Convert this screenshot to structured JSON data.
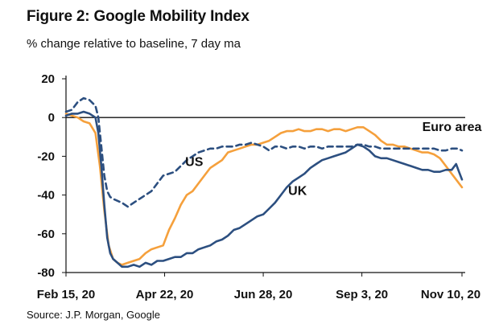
{
  "title": "Figure 2: Google Mobility Index",
  "subtitle": "% change relative to baseline, 7 day ma",
  "source": "Source: J.P. Morgan, Google",
  "chart_data": {
    "type": "line",
    "xlabel": "",
    "ylabel": "",
    "x_tick_labels": [
      "Feb 15, 20",
      "Apr 22, 20",
      "Jun 28, 20",
      "Sep 3, 20",
      "Nov 10, 20"
    ],
    "x_tick_days": [
      0,
      67,
      134,
      201,
      269
    ],
    "y_tick_labels": [
      "20",
      "0",
      "-20",
      "-40",
      "-60",
      "-80"
    ],
    "ylim": [
      -80,
      20
    ],
    "xlim_days": [
      0,
      269
    ],
    "grid": false,
    "series": [
      {
        "name": "Euro area",
        "color": "#f5a03c",
        "style": "solid",
        "points": [
          [
            0,
            2
          ],
          [
            4,
            1
          ],
          [
            8,
            0
          ],
          [
            12,
            -2
          ],
          [
            16,
            -3
          ],
          [
            20,
            -8
          ],
          [
            23,
            -25
          ],
          [
            26,
            -48
          ],
          [
            29,
            -66
          ],
          [
            32,
            -73
          ],
          [
            35,
            -75
          ],
          [
            38,
            -76
          ],
          [
            42,
            -75
          ],
          [
            46,
            -74
          ],
          [
            50,
            -73
          ],
          [
            54,
            -70
          ],
          [
            58,
            -68
          ],
          [
            62,
            -67
          ],
          [
            66,
            -66
          ],
          [
            70,
            -58
          ],
          [
            74,
            -52
          ],
          [
            78,
            -45
          ],
          [
            82,
            -40
          ],
          [
            86,
            -38
          ],
          [
            90,
            -34
          ],
          [
            94,
            -30
          ],
          [
            98,
            -26
          ],
          [
            102,
            -24
          ],
          [
            106,
            -22
          ],
          [
            110,
            -18
          ],
          [
            114,
            -17
          ],
          [
            118,
            -16
          ],
          [
            122,
            -15
          ],
          [
            126,
            -14
          ],
          [
            130,
            -14
          ],
          [
            134,
            -13
          ],
          [
            138,
            -12
          ],
          [
            142,
            -10
          ],
          [
            146,
            -8
          ],
          [
            150,
            -7
          ],
          [
            154,
            -7
          ],
          [
            158,
            -6
          ],
          [
            162,
            -7
          ],
          [
            166,
            -7
          ],
          [
            170,
            -6
          ],
          [
            174,
            -6
          ],
          [
            178,
            -7
          ],
          [
            182,
            -6
          ],
          [
            186,
            -6
          ],
          [
            190,
            -7
          ],
          [
            194,
            -6
          ],
          [
            198,
            -5
          ],
          [
            202,
            -5
          ],
          [
            206,
            -7
          ],
          [
            210,
            -9
          ],
          [
            214,
            -12
          ],
          [
            218,
            -14
          ],
          [
            222,
            -14
          ],
          [
            226,
            -15
          ],
          [
            230,
            -15
          ],
          [
            234,
            -16
          ],
          [
            238,
            -17
          ],
          [
            242,
            -18
          ],
          [
            246,
            -18
          ],
          [
            250,
            -19
          ],
          [
            254,
            -21
          ],
          [
            258,
            -25
          ],
          [
            262,
            -29
          ],
          [
            266,
            -33
          ],
          [
            269,
            -36
          ]
        ]
      },
      {
        "name": "US",
        "color": "#2c4f80",
        "style": "dashed",
        "points": [
          [
            0,
            3
          ],
          [
            4,
            4
          ],
          [
            8,
            8
          ],
          [
            12,
            10
          ],
          [
            16,
            9
          ],
          [
            20,
            6
          ],
          [
            22,
            0
          ],
          [
            24,
            -15
          ],
          [
            26,
            -30
          ],
          [
            28,
            -38
          ],
          [
            30,
            -41
          ],
          [
            32,
            -42
          ],
          [
            35,
            -43
          ],
          [
            38,
            -44
          ],
          [
            42,
            -46
          ],
          [
            46,
            -44
          ],
          [
            50,
            -42
          ],
          [
            54,
            -40
          ],
          [
            58,
            -38
          ],
          [
            62,
            -34
          ],
          [
            66,
            -30
          ],
          [
            70,
            -29
          ],
          [
            74,
            -28
          ],
          [
            78,
            -25
          ],
          [
            82,
            -22
          ],
          [
            86,
            -20
          ],
          [
            90,
            -18
          ],
          [
            94,
            -17
          ],
          [
            98,
            -16
          ],
          [
            102,
            -16
          ],
          [
            106,
            -15
          ],
          [
            110,
            -15
          ],
          [
            114,
            -15
          ],
          [
            118,
            -14
          ],
          [
            122,
            -14
          ],
          [
            126,
            -13
          ],
          [
            130,
            -14
          ],
          [
            134,
            -15
          ],
          [
            138,
            -17
          ],
          [
            142,
            -15
          ],
          [
            146,
            -15
          ],
          [
            150,
            -16
          ],
          [
            154,
            -15
          ],
          [
            158,
            -15
          ],
          [
            162,
            -16
          ],
          [
            166,
            -15
          ],
          [
            170,
            -15
          ],
          [
            174,
            -16
          ],
          [
            178,
            -15
          ],
          [
            182,
            -15
          ],
          [
            186,
            -15
          ],
          [
            190,
            -15
          ],
          [
            194,
            -15
          ],
          [
            198,
            -14
          ],
          [
            202,
            -14
          ],
          [
            206,
            -15
          ],
          [
            210,
            -15
          ],
          [
            214,
            -16
          ],
          [
            218,
            -16
          ],
          [
            222,
            -16
          ],
          [
            226,
            -16
          ],
          [
            230,
            -16
          ],
          [
            234,
            -16
          ],
          [
            238,
            -16
          ],
          [
            242,
            -16
          ],
          [
            246,
            -16
          ],
          [
            250,
            -16
          ],
          [
            254,
            -17
          ],
          [
            258,
            -17
          ],
          [
            262,
            -16
          ],
          [
            266,
            -16
          ],
          [
            269,
            -17
          ]
        ]
      },
      {
        "name": "UK",
        "color": "#2c4f80",
        "style": "solid",
        "points": [
          [
            0,
            1
          ],
          [
            4,
            2
          ],
          [
            8,
            2
          ],
          [
            12,
            3
          ],
          [
            16,
            2
          ],
          [
            20,
            0
          ],
          [
            22,
            -8
          ],
          [
            24,
            -25
          ],
          [
            26,
            -45
          ],
          [
            28,
            -62
          ],
          [
            30,
            -70
          ],
          [
            32,
            -73
          ],
          [
            35,
            -75
          ],
          [
            38,
            -77
          ],
          [
            42,
            -77
          ],
          [
            46,
            -76
          ],
          [
            50,
            -77
          ],
          [
            54,
            -75
          ],
          [
            58,
            -76
          ],
          [
            62,
            -74
          ],
          [
            66,
            -74
          ],
          [
            70,
            -73
          ],
          [
            74,
            -72
          ],
          [
            78,
            -72
          ],
          [
            82,
            -70
          ],
          [
            86,
            -70
          ],
          [
            90,
            -68
          ],
          [
            94,
            -67
          ],
          [
            98,
            -66
          ],
          [
            102,
            -64
          ],
          [
            106,
            -63
          ],
          [
            110,
            -61
          ],
          [
            114,
            -58
          ],
          [
            118,
            -57
          ],
          [
            122,
            -55
          ],
          [
            126,
            -53
          ],
          [
            130,
            -51
          ],
          [
            134,
            -50
          ],
          [
            138,
            -47
          ],
          [
            142,
            -44
          ],
          [
            146,
            -40
          ],
          [
            150,
            -36
          ],
          [
            154,
            -33
          ],
          [
            158,
            -31
          ],
          [
            162,
            -29
          ],
          [
            166,
            -26
          ],
          [
            170,
            -24
          ],
          [
            174,
            -22
          ],
          [
            178,
            -21
          ],
          [
            182,
            -20
          ],
          [
            186,
            -19
          ],
          [
            190,
            -18
          ],
          [
            194,
            -16
          ],
          [
            198,
            -14
          ],
          [
            202,
            -15
          ],
          [
            206,
            -17
          ],
          [
            210,
            -20
          ],
          [
            214,
            -21
          ],
          [
            218,
            -21
          ],
          [
            222,
            -22
          ],
          [
            226,
            -23
          ],
          [
            230,
            -24
          ],
          [
            234,
            -25
          ],
          [
            238,
            -26
          ],
          [
            242,
            -27
          ],
          [
            246,
            -27
          ],
          [
            250,
            -28
          ],
          [
            254,
            -28
          ],
          [
            258,
            -27
          ],
          [
            262,
            -27
          ],
          [
            265,
            -24
          ],
          [
            267,
            -28
          ],
          [
            269,
            -32
          ]
        ]
      }
    ],
    "series_labels": [
      {
        "text": "Euro area",
        "x": 242,
        "y": -7
      },
      {
        "text": "US",
        "x": 81,
        "y": -25
      },
      {
        "text": "UK",
        "x": 151,
        "y": -40
      }
    ]
  }
}
